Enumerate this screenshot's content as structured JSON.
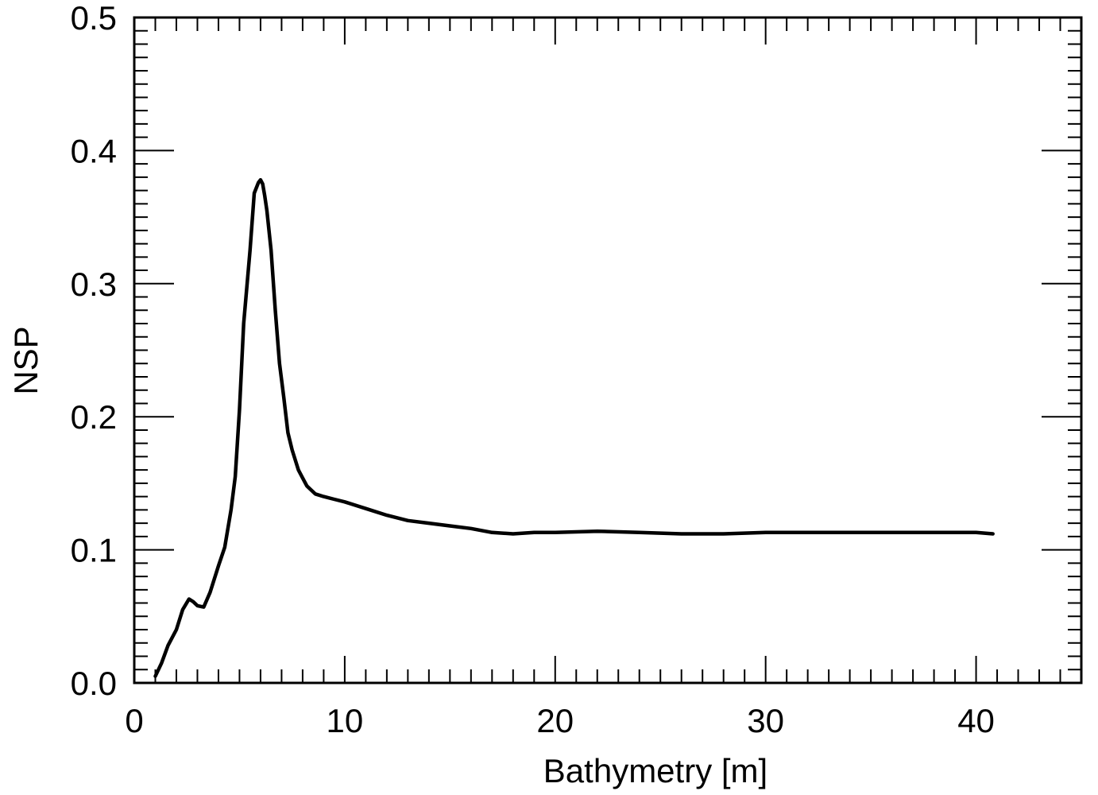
{
  "chart_data": {
    "type": "line",
    "title": "",
    "xlabel": "Bathymetry [m]",
    "ylabel": "NSP",
    "xlim": [
      0,
      45
    ],
    "ylim": [
      0.0,
      0.5
    ],
    "grid": false,
    "x_ticks": [
      0,
      10,
      20,
      30,
      40
    ],
    "x_tick_labels": [
      "0",
      "10",
      "20",
      "30",
      "40"
    ],
    "x_minor_step": 1,
    "y_ticks": [
      0.0,
      0.1,
      0.2,
      0.3,
      0.4,
      0.5
    ],
    "y_tick_labels": [
      "0.0",
      "0.1",
      "0.2",
      "0.3",
      "0.4",
      "0.5"
    ],
    "y_minor_step": 0.01,
    "series": [
      {
        "color": "#000000",
        "x": [
          1.0,
          1.3,
          1.6,
          2.0,
          2.3,
          2.6,
          2.8,
          3.0,
          3.3,
          3.6,
          4.0,
          4.3,
          4.6,
          4.8,
          5.0,
          5.2,
          5.5,
          5.7,
          5.9,
          6.0,
          6.1,
          6.2,
          6.3,
          6.5,
          6.7,
          6.9,
          7.1,
          7.3,
          7.5,
          7.8,
          8.2,
          8.6,
          9.0,
          9.5,
          10.0,
          11.0,
          12.0,
          13.0,
          14.0,
          15.0,
          16.0,
          17.0,
          18.0,
          19.0,
          20.0,
          22.0,
          24.0,
          26.0,
          28.0,
          30.0,
          32.0,
          34.0,
          36.0,
          38.0,
          40.0,
          40.8
        ],
        "values": [
          0.005,
          0.015,
          0.028,
          0.04,
          0.055,
          0.063,
          0.061,
          0.058,
          0.057,
          0.068,
          0.088,
          0.102,
          0.13,
          0.155,
          0.205,
          0.27,
          0.325,
          0.368,
          0.376,
          0.378,
          0.375,
          0.366,
          0.355,
          0.325,
          0.28,
          0.24,
          0.215,
          0.188,
          0.175,
          0.16,
          0.148,
          0.142,
          0.14,
          0.138,
          0.136,
          0.131,
          0.126,
          0.122,
          0.12,
          0.118,
          0.116,
          0.113,
          0.112,
          0.113,
          0.113,
          0.114,
          0.113,
          0.112,
          0.112,
          0.113,
          0.113,
          0.113,
          0.113,
          0.113,
          0.113,
          0.112
        ]
      }
    ]
  }
}
